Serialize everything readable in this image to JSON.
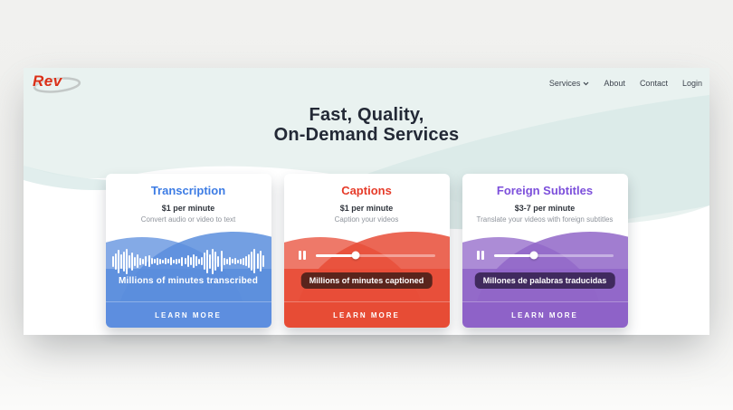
{
  "theme": {
    "outer_bg": "#f1f1ef",
    "page_bg": "#ffffff",
    "teal_light": "#e9f2f0",
    "teal_dark": "#d9eae8",
    "heading_color": "#232936",
    "nav_color": "#3d444e",
    "logo_red": "#da3018"
  },
  "header": {
    "logo": "Rev",
    "nav_items": [
      {
        "label": "Services",
        "has_dropdown": true
      },
      {
        "label": "About",
        "has_dropdown": false
      },
      {
        "label": "Contact",
        "has_dropdown": false
      },
      {
        "label": "Login",
        "has_dropdown": false
      }
    ]
  },
  "hero": {
    "title_line1": "Fast, Quality,",
    "title_line2": "On-Demand Services"
  },
  "cards": [
    {
      "title": "Transcription",
      "price": "$1 per minute",
      "description": "Convert audio or video to text",
      "visual_type": "waveform",
      "caption": "Millions of minutes transcribed",
      "cta": "LEARN MORE",
      "colors": {
        "title": "#3d7ce4",
        "main": "#5b8edd",
        "cta": "#5d8edf"
      },
      "waveform": [
        12,
        18,
        26,
        16,
        22,
        28,
        14,
        20,
        10,
        15,
        8,
        6,
        11,
        13,
        7,
        5,
        8,
        6,
        4,
        7,
        5,
        9,
        4,
        6,
        5,
        10,
        7,
        13,
        9,
        15,
        11,
        6,
        9,
        19,
        26,
        16,
        28,
        21,
        12,
        23,
        8,
        6,
        9,
        5,
        7,
        4,
        6,
        8,
        11,
        15,
        21,
        27,
        17,
        23,
        13
      ]
    },
    {
      "title": "Captions",
      "price": "$1 per minute",
      "description": "Caption your videos",
      "visual_type": "slider",
      "slider_progress": 0.34,
      "badge": "Millions of minutes captioned",
      "cta": "LEARN MORE",
      "colors": {
        "title": "#e63b29",
        "main": "#e84c37",
        "cta": "#e74c35",
        "badge": "#5a241c"
      }
    },
    {
      "title": "Foreign Subtitles",
      "price": "$3-7 per minute",
      "description": "Translate your videos with foreign subtitles",
      "visual_type": "slider",
      "slider_progress": 0.34,
      "badge": "Millones de palabras traducidas",
      "cta": "LEARN MORE",
      "colors": {
        "title": "#7c4fdb",
        "main": "#9066c8",
        "cta": "#8e62c8",
        "badge": "#402a5e"
      }
    }
  ]
}
